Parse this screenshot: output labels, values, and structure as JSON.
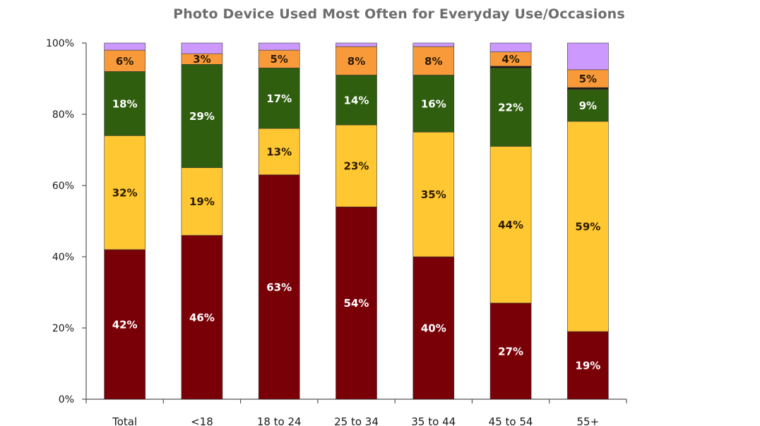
{
  "chart_data": {
    "type": "bar",
    "stacked": true,
    "title": "Photo Device Used Most Often for Everyday Use/Occasions",
    "categories": [
      "Total",
      "<18",
      "18 to 24",
      "25 to 34",
      "35 to 44",
      "45 to 54",
      "55+"
    ],
    "ylim": [
      0,
      100
    ],
    "yticks": [
      {
        "value": 0,
        "label": "0%"
      },
      {
        "value": 20,
        "label": "20%"
      },
      {
        "value": 40,
        "label": "40%"
      },
      {
        "value": 60,
        "label": "60%"
      },
      {
        "value": 80,
        "label": "80%"
      },
      {
        "value": 100,
        "label": "100%"
      }
    ],
    "legend": "none",
    "grid": false,
    "series": [
      {
        "color": "#7a0008",
        "label_color": "#ffffff",
        "values": [
          42,
          46,
          63,
          54,
          40,
          27,
          19
        ],
        "labels": [
          "42%",
          "46%",
          "63%",
          "54%",
          "40%",
          "27%",
          "19%"
        ]
      },
      {
        "color": "#ffc832",
        "label_color": "#2a1a00",
        "values": [
          32,
          19,
          13,
          23,
          35,
          44,
          59
        ],
        "labels": [
          "32%",
          "19%",
          "13%",
          "23%",
          "35%",
          "44%",
          "59%"
        ]
      },
      {
        "color": "#2e5e0e",
        "label_color": "#ffffff",
        "values": [
          18,
          29,
          17,
          14,
          16,
          22,
          9
        ],
        "labels": [
          "18%",
          "29%",
          "17%",
          "14%",
          "16%",
          "22%",
          "9%"
        ]
      },
      {
        "color": "#231212",
        "label_color": "#ffffff",
        "values": [
          0,
          0,
          0,
          0,
          0,
          0.5,
          0.5
        ],
        "labels": [
          "",
          "",
          "",
          "",
          "",
          "",
          ""
        ]
      },
      {
        "color": "#f89a3a",
        "label_color": "#2a1a00",
        "values": [
          6,
          3,
          5,
          8,
          8,
          4,
          5
        ],
        "labels": [
          "6%",
          "3%",
          "5%",
          "8%",
          "8%",
          "4%",
          "5%"
        ]
      },
      {
        "color": "#cc99ff",
        "label_color": "#2a1a00",
        "values": [
          2,
          3,
          2,
          1,
          1,
          2.5,
          7.5
        ],
        "labels": [
          "",
          "",
          "",
          "",
          "",
          "",
          ""
        ]
      }
    ]
  }
}
